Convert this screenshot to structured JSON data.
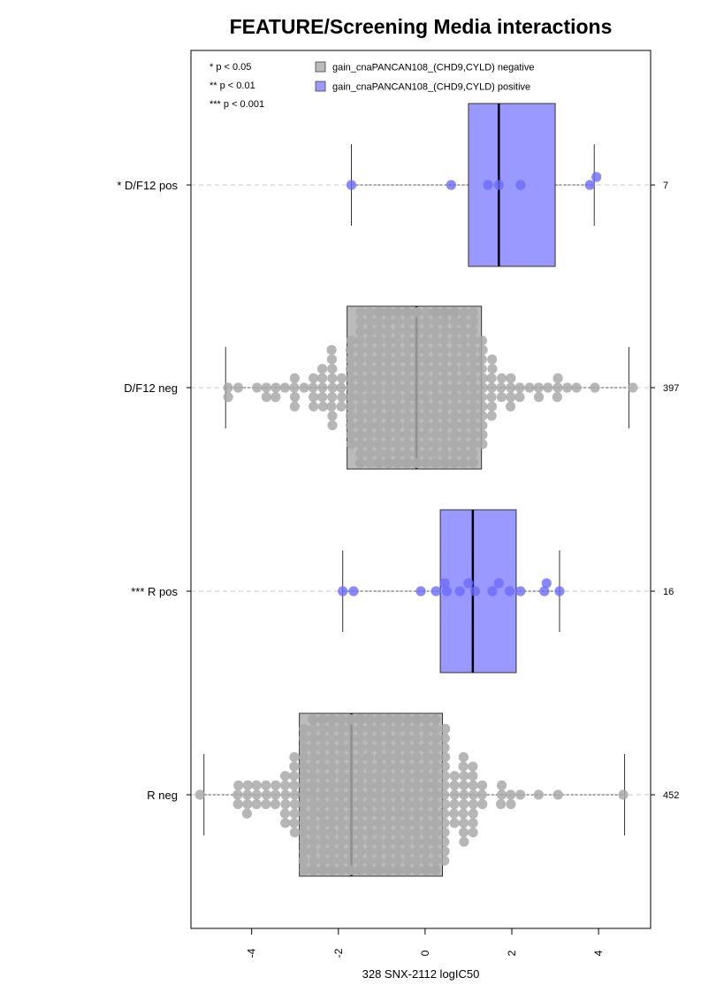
{
  "chart_data": {
    "type": "boxplot",
    "title": "FEATURE/Screening Media interactions",
    "xlabel": "328 SNX-2112 logIC50",
    "xlim": [
      -5.4,
      5.2
    ],
    "x_ticks": [
      -4,
      -2,
      0,
      2,
      4
    ],
    "x_tick_labels": [
      "-4",
      "-2",
      "0",
      "2",
      "4"
    ],
    "significance_legend": [
      "* p < 0.05",
      "** p < 0.01",
      "*** p < 0.001"
    ],
    "legend": [
      {
        "label": "gain_cnaPANCAN108_(CHD9,CYLD) negative",
        "color": "#bbbbbb"
      },
      {
        "label": "gain_cnaPANCAN108_(CHD9,CYLD) positive",
        "color": "#9999ff"
      }
    ],
    "legend_position": "top",
    "grid": false,
    "colors": {
      "negative_box": "#bbbbbb",
      "positive_box": "#9999ff",
      "negative_point": "#a9a9a9",
      "positive_point": "#6b6bff"
    },
    "groups": [
      {
        "label": "* D/F12 pos",
        "n": "7",
        "status": "positive",
        "whisker_low": -1.7,
        "q1": 1.0,
        "median": 1.7,
        "q3": 3.0,
        "whisker_high": 3.9,
        "points": [
          -1.7,
          0.6,
          1.45,
          1.7,
          2.2,
          3.8,
          3.95
        ]
      },
      {
        "label": "D/F12 neg",
        "n": "397",
        "status": "negative",
        "whisker_low": -4.6,
        "q1": -1.8,
        "median": -0.2,
        "q3": 1.3,
        "whisker_high": 4.7,
        "points": []
      },
      {
        "label": "*** R pos",
        "n": "16",
        "status": "positive",
        "whisker_low": -1.9,
        "q1": 0.35,
        "median": 1.1,
        "q3": 2.1,
        "whisker_high": 3.1,
        "points": [
          -1.9,
          -1.65,
          -0.1,
          0.25,
          0.45,
          0.5,
          0.8,
          1.0,
          1.15,
          1.55,
          1.7,
          1.95,
          2.2,
          2.75,
          2.8,
          3.1
        ]
      },
      {
        "label": "R neg",
        "n": "452",
        "status": "negative",
        "whisker_low": -5.1,
        "q1": -2.9,
        "median": -1.7,
        "q3": 0.4,
        "whisker_high": 4.6,
        "points": []
      }
    ]
  }
}
